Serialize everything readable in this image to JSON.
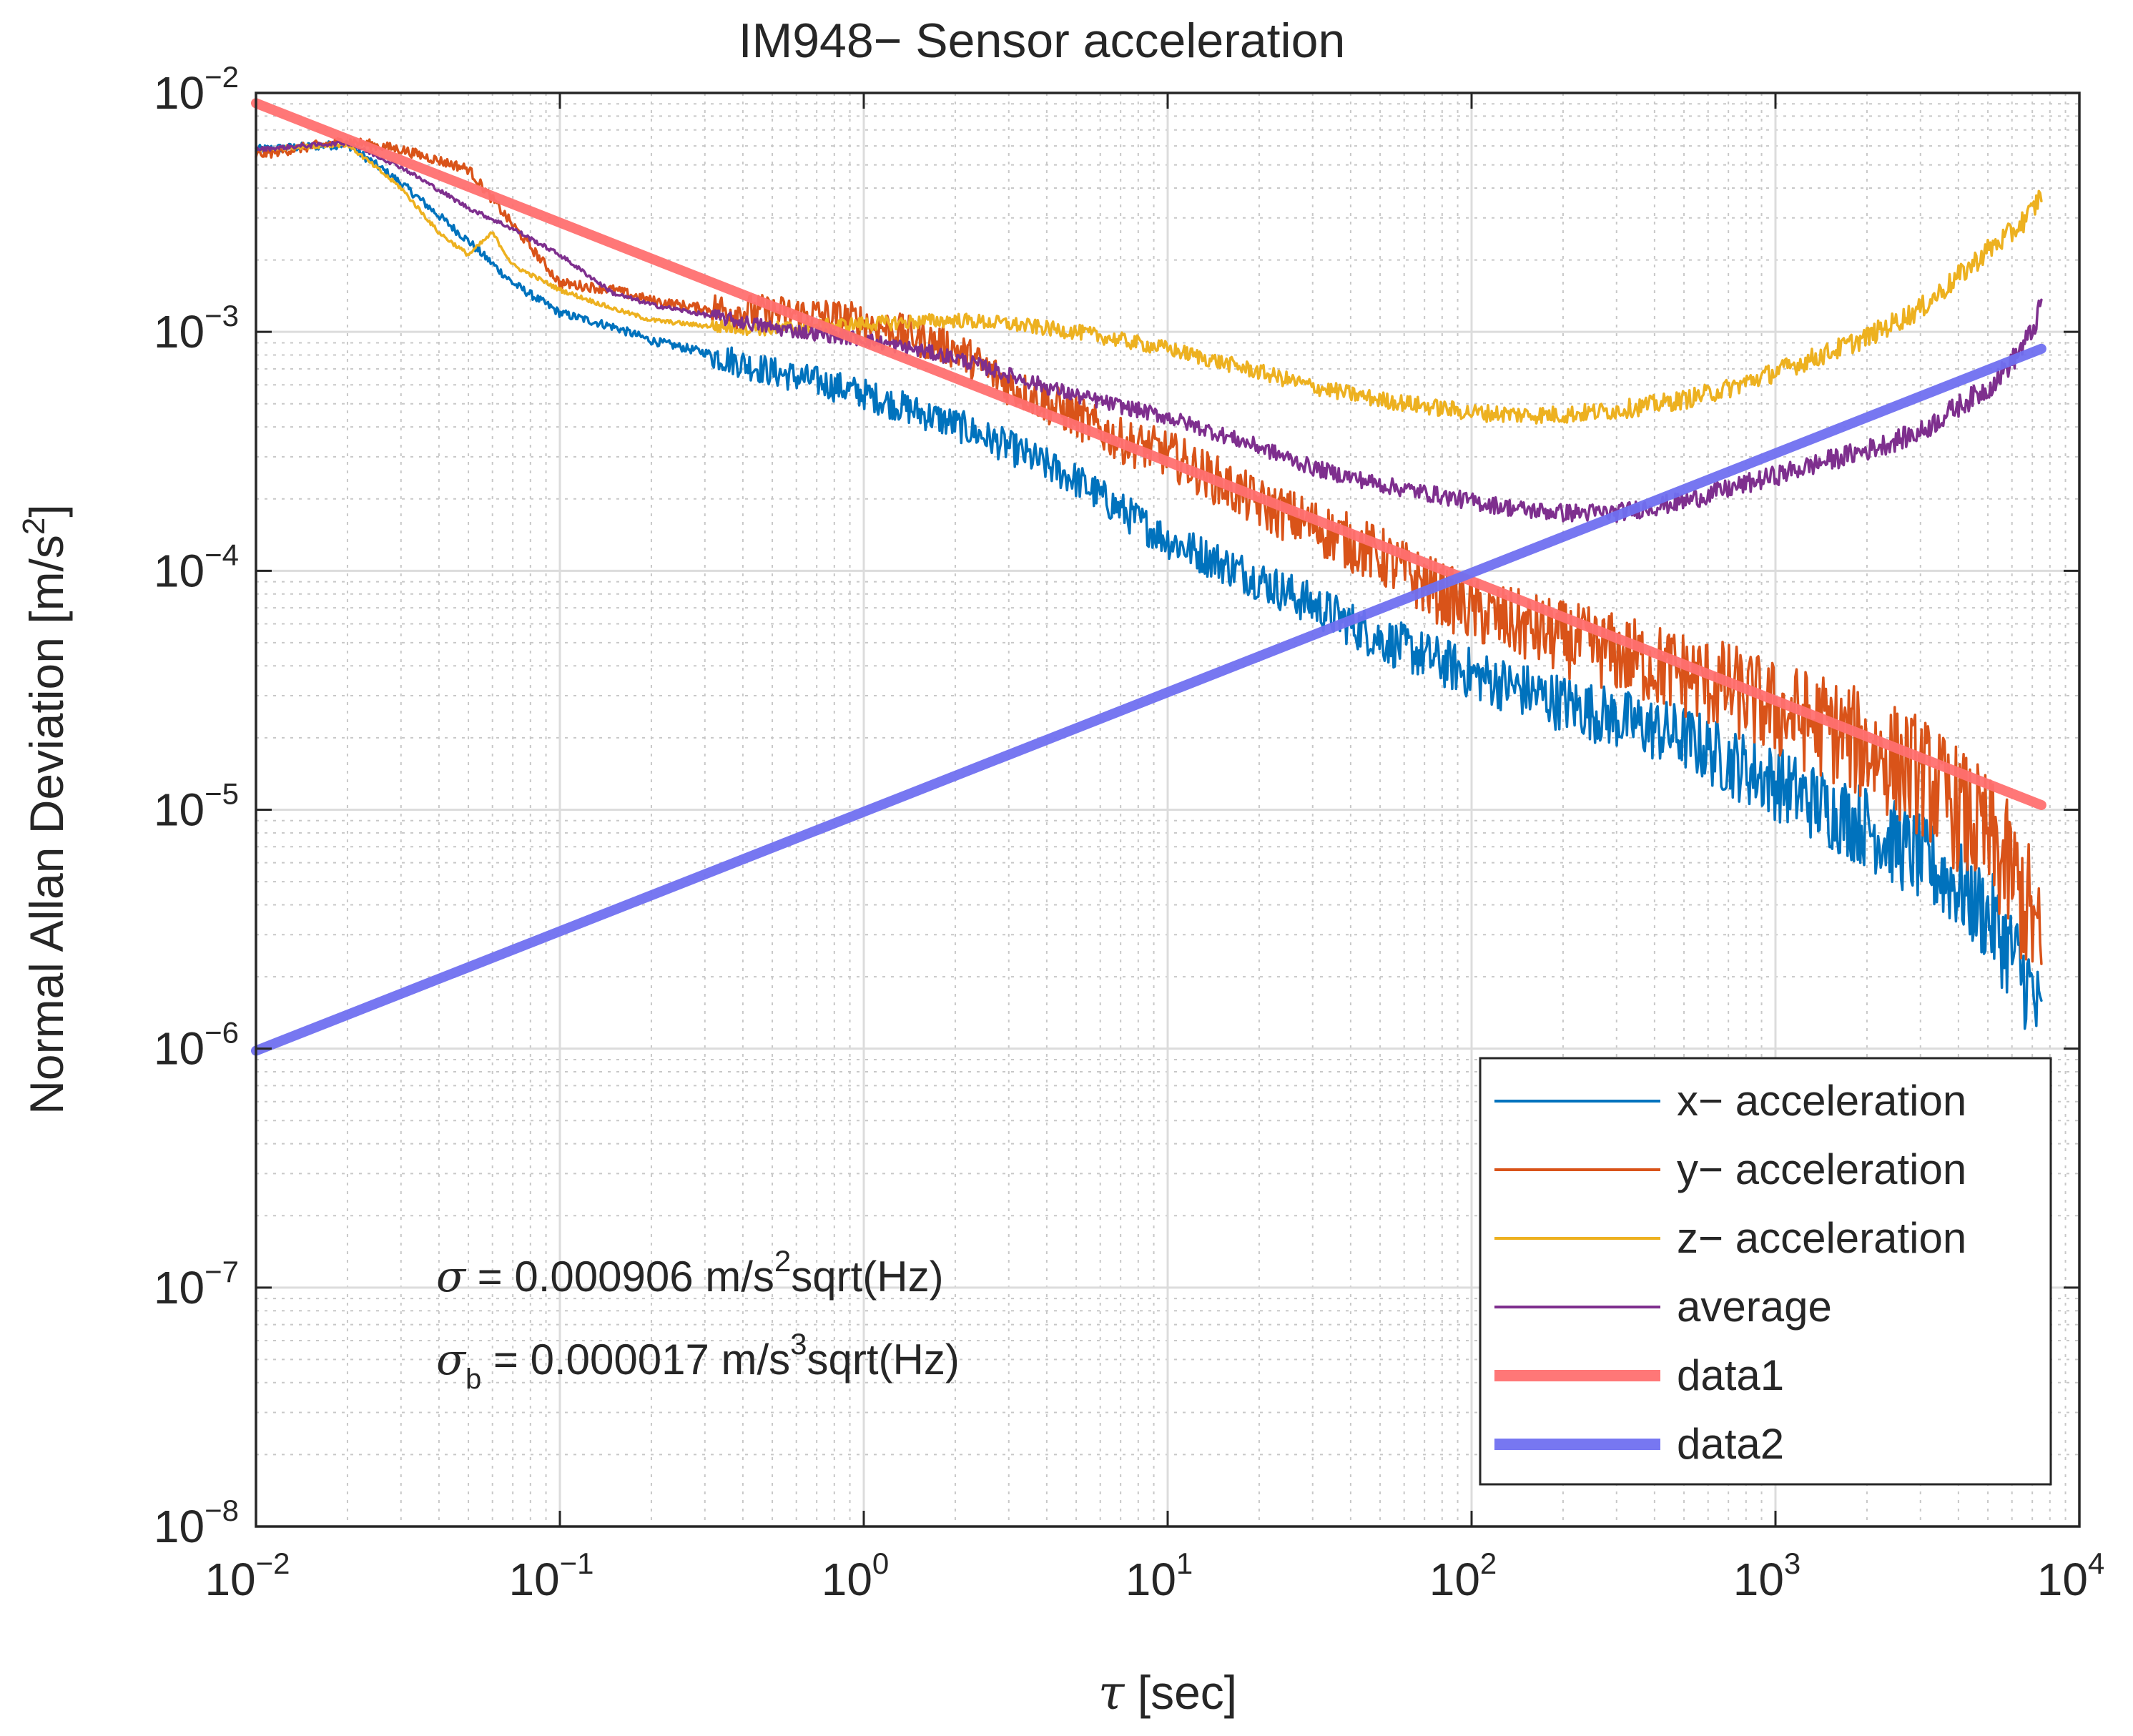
{
  "chart_data": {
    "type": "line",
    "title": "IM948− Sensor acceleration",
    "xlabel_symbol": "τ",
    "xlabel_rest": " [sec]",
    "ylabel": "Normal Allan Deviation [m/s",
    "ylabel_sup": "2",
    "ylabel_close": "]",
    "xscale": "log",
    "yscale": "log",
    "xlim": [
      0.01,
      10000
    ],
    "ylim": [
      1e-08,
      0.01
    ],
    "grid": true,
    "legend_position": "bottom-right",
    "x_ticks": [
      {
        "base": "10",
        "exp": "−2"
      },
      {
        "base": "10",
        "exp": "−1"
      },
      {
        "base": "10",
        "exp": "0"
      },
      {
        "base": "10",
        "exp": "1"
      },
      {
        "base": "10",
        "exp": "2"
      },
      {
        "base": "10",
        "exp": "3"
      },
      {
        "base": "10",
        "exp": "4"
      }
    ],
    "y_ticks": [
      {
        "base": "10",
        "exp": "−8"
      },
      {
        "base": "10",
        "exp": "−7"
      },
      {
        "base": "10",
        "exp": "−6"
      },
      {
        "base": "10",
        "exp": "−5"
      },
      {
        "base": "10",
        "exp": "−4"
      },
      {
        "base": "10",
        "exp": "−3"
      },
      {
        "base": "10",
        "exp": "−2"
      }
    ],
    "annotations": {
      "sigma_symbol": "σ",
      "sigma_text": " = 0.000906 m/s",
      "sigma_sup": "2",
      "sigma_tail": "sqrt(Hz)",
      "sigma_b_symbol": "σ",
      "sigma_b_sub": "b",
      "sigma_b_text": " = 0.000017 m/s",
      "sigma_b_sup": "3",
      "sigma_b_tail": "sqrt(Hz)"
    },
    "series": [
      {
        "name": "x− acceleration",
        "color": "#0072BD",
        "width": 3.5,
        "x": [
          0.01,
          0.02,
          0.03,
          0.05,
          0.07,
          0.1,
          0.15,
          0.2,
          0.3,
          0.5,
          0.7,
          1,
          2,
          3,
          5,
          7,
          10,
          20,
          30,
          50,
          70,
          100,
          200,
          300,
          500,
          700,
          1000,
          1500,
          2000,
          3000,
          4000,
          5000,
          6000,
          7000,
          7500
        ],
        "y": [
          0.0058,
          0.0061,
          0.0042,
          0.0024,
          0.0016,
          0.0012,
          0.00105,
          0.00092,
          0.00082,
          0.00068,
          0.00062,
          0.00055,
          0.00041,
          0.00033,
          0.00024,
          0.00018,
          0.000135,
          9.2e-05,
          7.2e-05,
          5.2e-05,
          4.4e-05,
          3.7e-05,
          2.8e-05,
          2.4e-05,
          2e-05,
          1.6e-05,
          1.3e-05,
          1e-05,
          8.5e-06,
          6.2e-06,
          4.8e-06,
          3.6e-06,
          2.5e-06,
          1.7e-06,
          1.2e-06
        ],
        "noise": 0.06,
        "noise_tail": 0.22
      },
      {
        "name": "y− acceleration",
        "color": "#D95319",
        "width": 3.5,
        "x": [
          0.01,
          0.02,
          0.03,
          0.05,
          0.07,
          0.1,
          0.15,
          0.2,
          0.3,
          0.5,
          0.7,
          1,
          2,
          3,
          5,
          7,
          10,
          20,
          30,
          50,
          70,
          100,
          200,
          300,
          500,
          700,
          1000,
          1500,
          2000,
          3000,
          4000,
          5000,
          6000,
          7000,
          7500
        ],
        "y": [
          0.0055,
          0.0063,
          0.0058,
          0.0048,
          0.0028,
          0.0016,
          0.0015,
          0.00135,
          0.00125,
          0.0012,
          0.00118,
          0.0011,
          0.00085,
          0.0006,
          0.00044,
          0.00035,
          0.00031,
          0.00019,
          0.000155,
          0.000115,
          8.8e-05,
          6.8e-05,
          5.2e-05,
          4.5e-05,
          3.7e-05,
          3.2e-05,
          2.6e-05,
          2.2e-05,
          1.8e-05,
          1.4e-05,
          1e-05,
          7.5e-06,
          5.3e-06,
          3.5e-06,
          2.3e-06
        ],
        "noise": 0.07,
        "noise_tail": 0.3
      },
      {
        "name": "z− acceleration",
        "color": "#EDB120",
        "width": 3.5,
        "x": [
          0.01,
          0.02,
          0.03,
          0.04,
          0.05,
          0.06,
          0.07,
          0.1,
          0.15,
          0.2,
          0.3,
          0.5,
          1,
          2,
          3,
          5,
          10,
          20,
          30,
          50,
          70,
          100,
          150,
          200,
          300,
          500,
          700,
          1000,
          1500,
          2000,
          3000,
          4000,
          5000,
          6000,
          7000,
          7500
        ],
        "y": [
          0.0058,
          0.0061,
          0.004,
          0.0026,
          0.0021,
          0.0026,
          0.0019,
          0.0015,
          0.00125,
          0.00112,
          0.00106,
          0.00103,
          0.00108,
          0.00112,
          0.00108,
          0.001,
          0.00085,
          0.00068,
          0.00059,
          0.00052,
          0.00049,
          0.00046,
          0.00045,
          0.00045,
          0.00047,
          0.00052,
          0.00058,
          0.00068,
          0.00082,
          0.00095,
          0.00125,
          0.0017,
          0.0022,
          0.0026,
          0.0032,
          0.0038
        ],
        "noise": 0.03,
        "noise_tail": 0.05
      },
      {
        "name": "average",
        "color": "#7E2F8E",
        "width": 3.5,
        "x": [
          0.01,
          0.02,
          0.03,
          0.05,
          0.07,
          0.1,
          0.15,
          0.2,
          0.3,
          0.5,
          1,
          2,
          3,
          5,
          10,
          20,
          30,
          50,
          100,
          150,
          200,
          300,
          500,
          700,
          1000,
          1500,
          2000,
          3000,
          4000,
          5000,
          6000,
          7000,
          7500
        ],
        "y": [
          0.0058,
          0.0062,
          0.0049,
          0.0033,
          0.0027,
          0.0021,
          0.00145,
          0.0013,
          0.00118,
          0.00104,
          0.00093,
          0.00078,
          0.00066,
          0.00054,
          0.00044,
          0.00033,
          0.00027,
          0.00023,
          0.000195,
          0.00018,
          0.000175,
          0.000175,
          0.000195,
          0.00022,
          0.00025,
          0.00029,
          0.00032,
          0.00038,
          0.00049,
          0.00058,
          0.00075,
          0.001,
          0.0013
        ],
        "noise": 0.03,
        "noise_tail": 0.05
      },
      {
        "name": "data1",
        "color": "#FF7070",
        "width": 14,
        "opacity": 0.95,
        "x": [
          0.01,
          7500
        ],
        "y": [
          0.00906,
          1.046e-05
        ]
      },
      {
        "name": "data2",
        "color": "#7070F0",
        "width": 14,
        "opacity": 0.95,
        "x": [
          0.01,
          7500
        ],
        "y": [
          9.8e-07,
          0.00085
        ]
      }
    ]
  }
}
